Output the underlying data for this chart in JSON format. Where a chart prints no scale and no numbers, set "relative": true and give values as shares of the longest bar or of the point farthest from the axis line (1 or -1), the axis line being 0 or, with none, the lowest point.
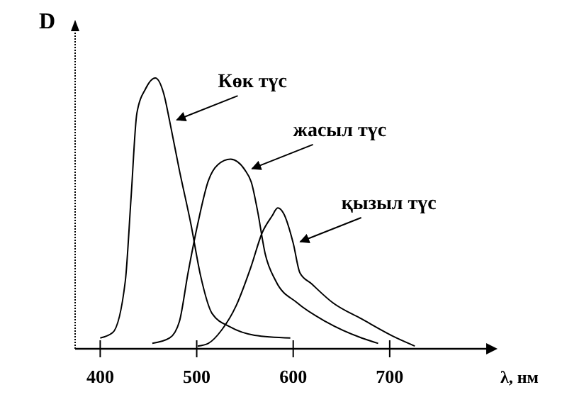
{
  "chart_data": {
    "type": "line",
    "relative": true,
    "ylabel": "D",
    "xlabel": "λ, нм",
    "xlim": [
      374,
      800
    ],
    "xticks": [
      400,
      500,
      600,
      700
    ],
    "grid": false,
    "marker": "none",
    "line_style": "solid",
    "series": [
      {
        "color": "#000000",
        "x": [
          400,
          413,
          426,
          432,
          438,
          447,
          457,
          466,
          472,
          482,
          494,
          504,
          516,
          535,
          560,
          597
        ],
        "values": [
          0.04,
          0.06,
          0.25,
          0.56,
          0.87,
          0.96,
          1.0,
          0.94,
          0.84,
          0.66,
          0.46,
          0.27,
          0.13,
          0.08,
          0.05,
          0.04
        ]
      },
      {
        "color": "#000000",
        "x": [
          454,
          472,
          482,
          491,
          501,
          512,
          522,
          535,
          550,
          557,
          563,
          571,
          582,
          604,
          634,
          671,
          688
        ],
        "values": [
          0.02,
          0.04,
          0.1,
          0.28,
          0.46,
          0.62,
          0.68,
          0.7,
          0.66,
          0.61,
          0.51,
          0.35,
          0.25,
          0.17,
          0.1,
          0.04,
          0.02
        ]
      },
      {
        "color": "#000000",
        "x": [
          501,
          512,
          526,
          541,
          556,
          568,
          578,
          584,
          590,
          600,
          607,
          619,
          641,
          671,
          707,
          726
        ],
        "values": [
          0.01,
          0.02,
          0.07,
          0.16,
          0.3,
          0.43,
          0.49,
          0.52,
          0.5,
          0.39,
          0.28,
          0.24,
          0.17,
          0.11,
          0.04,
          0.01
        ]
      }
    ],
    "annotations": [
      {
        "text": "Көк түс",
        "x": 472,
        "y": 0.84
      },
      {
        "text": "жасыл түс",
        "x": 550,
        "y": 0.66
      },
      {
        "text": "қызыл түс",
        "x": 600,
        "y": 0.39
      }
    ]
  }
}
